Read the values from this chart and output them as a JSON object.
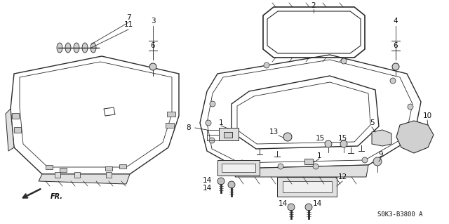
{
  "bg_color": "#ffffff",
  "fig_width": 6.4,
  "fig_height": 3.19,
  "dpi": 100,
  "line_color": "#2a2a2a",
  "text_color": "#111111",
  "font_size": 7.5,
  "diagram_ref": "S0K3-B3800 A",
  "arrow_label": "FR."
}
